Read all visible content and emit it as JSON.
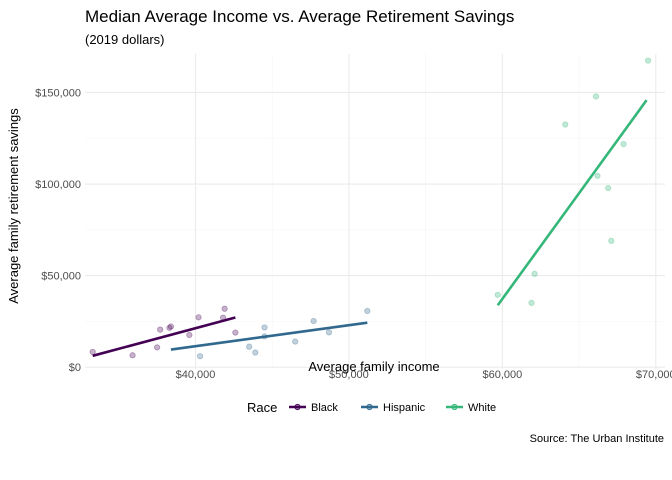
{
  "chart_data": {
    "type": "scatter",
    "title": "Median Average Income vs. Average Retirement Savings",
    "subtitle": "(2019 dollars)",
    "xlabel": "Average family income",
    "ylabel": "Average family retirement savings",
    "caption": "Source: The Urban Institute",
    "xlim": [
      32800,
      70600
    ],
    "ylim": [
      -1000,
      171000
    ],
    "x_ticks": [
      40000,
      50000,
      60000,
      70000
    ],
    "x_tick_labels": [
      "$40,000",
      "$50,000",
      "$60,000",
      "$70,000"
    ],
    "y_ticks": [
      0,
      50000,
      100000,
      150000
    ],
    "y_tick_labels": [
      "$0",
      "$50,000",
      "$100,000",
      "$150,000"
    ],
    "grid": true,
    "legend": {
      "title": "Race",
      "position": "bottom"
    },
    "series": [
      {
        "name": "Black",
        "color": "#440154",
        "points": [
          {
            "x": 33300,
            "y": 8300
          },
          {
            "x": 35900,
            "y": 6500
          },
          {
            "x": 37500,
            "y": 10800
          },
          {
            "x": 37700,
            "y": 20500
          },
          {
            "x": 38300,
            "y": 21500
          },
          {
            "x": 38400,
            "y": 22200
          },
          {
            "x": 39600,
            "y": 17600
          },
          {
            "x": 40200,
            "y": 27200
          },
          {
            "x": 41800,
            "y": 27000
          },
          {
            "x": 41900,
            "y": 31900
          },
          {
            "x": 42600,
            "y": 18900
          }
        ],
        "fit": [
          {
            "x": 33300,
            "y": 6200
          },
          {
            "x": 42600,
            "y": 27100
          }
        ]
      },
      {
        "name": "Hispanic",
        "color": "#31688E",
        "points": [
          {
            "x": 40300,
            "y": 6000
          },
          {
            "x": 43500,
            "y": 11200
          },
          {
            "x": 43900,
            "y": 8000
          },
          {
            "x": 44500,
            "y": 16800
          },
          {
            "x": 44500,
            "y": 21700
          },
          {
            "x": 46500,
            "y": 14000
          },
          {
            "x": 47700,
            "y": 25200
          },
          {
            "x": 48700,
            "y": 19000
          },
          {
            "x": 51200,
            "y": 30700
          }
        ],
        "fit": [
          {
            "x": 38400,
            "y": 9600
          },
          {
            "x": 51200,
            "y": 24300
          }
        ]
      },
      {
        "name": "White",
        "color": "#35B779",
        "points": [
          {
            "x": 59700,
            "y": 39500
          },
          {
            "x": 61900,
            "y": 35100
          },
          {
            "x": 62100,
            "y": 51000
          },
          {
            "x": 64100,
            "y": 132500
          },
          {
            "x": 66100,
            "y": 147800
          },
          {
            "x": 66200,
            "y": 104500
          },
          {
            "x": 66900,
            "y": 97800
          },
          {
            "x": 67100,
            "y": 69000
          },
          {
            "x": 67900,
            "y": 121800
          },
          {
            "x": 69500,
            "y": 167400
          }
        ],
        "fit": [
          {
            "x": 59700,
            "y": 33800
          },
          {
            "x": 69400,
            "y": 145800
          }
        ]
      }
    ]
  }
}
